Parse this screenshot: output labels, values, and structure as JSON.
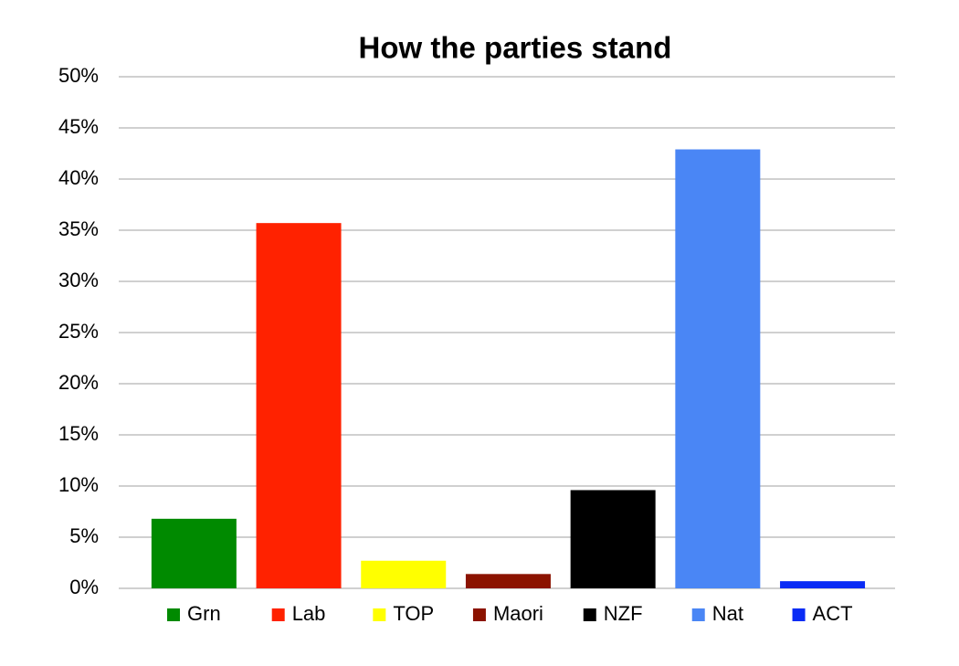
{
  "chart_data": {
    "type": "bar",
    "title": "How the parties stand",
    "categories": [
      "Grn",
      "Lab",
      "TOP",
      "Maori",
      "NZF",
      "Nat",
      "ACT"
    ],
    "values": [
      6.8,
      35.7,
      2.7,
      1.4,
      9.6,
      42.9,
      0.7
    ],
    "colors": [
      "#008a00",
      "#ff2200",
      "#ffff00",
      "#8b1300",
      "#000000",
      "#4a86f5",
      "#0a2cf5"
    ],
    "ylim": [
      0,
      50
    ],
    "yticks": [
      {
        "value": 0,
        "label": "0%"
      },
      {
        "value": 5,
        "label": "5%"
      },
      {
        "value": 10,
        "label": "10%"
      },
      {
        "value": 15,
        "label": "15%"
      },
      {
        "value": 20,
        "label": "20%"
      },
      {
        "value": 25,
        "label": "25%"
      },
      {
        "value": 30,
        "label": "30%"
      },
      {
        "value": 35,
        "label": "35%"
      },
      {
        "value": 40,
        "label": "40%"
      },
      {
        "value": 45,
        "label": "45%"
      },
      {
        "value": 50,
        "label": "50%"
      }
    ],
    "grid": true
  }
}
